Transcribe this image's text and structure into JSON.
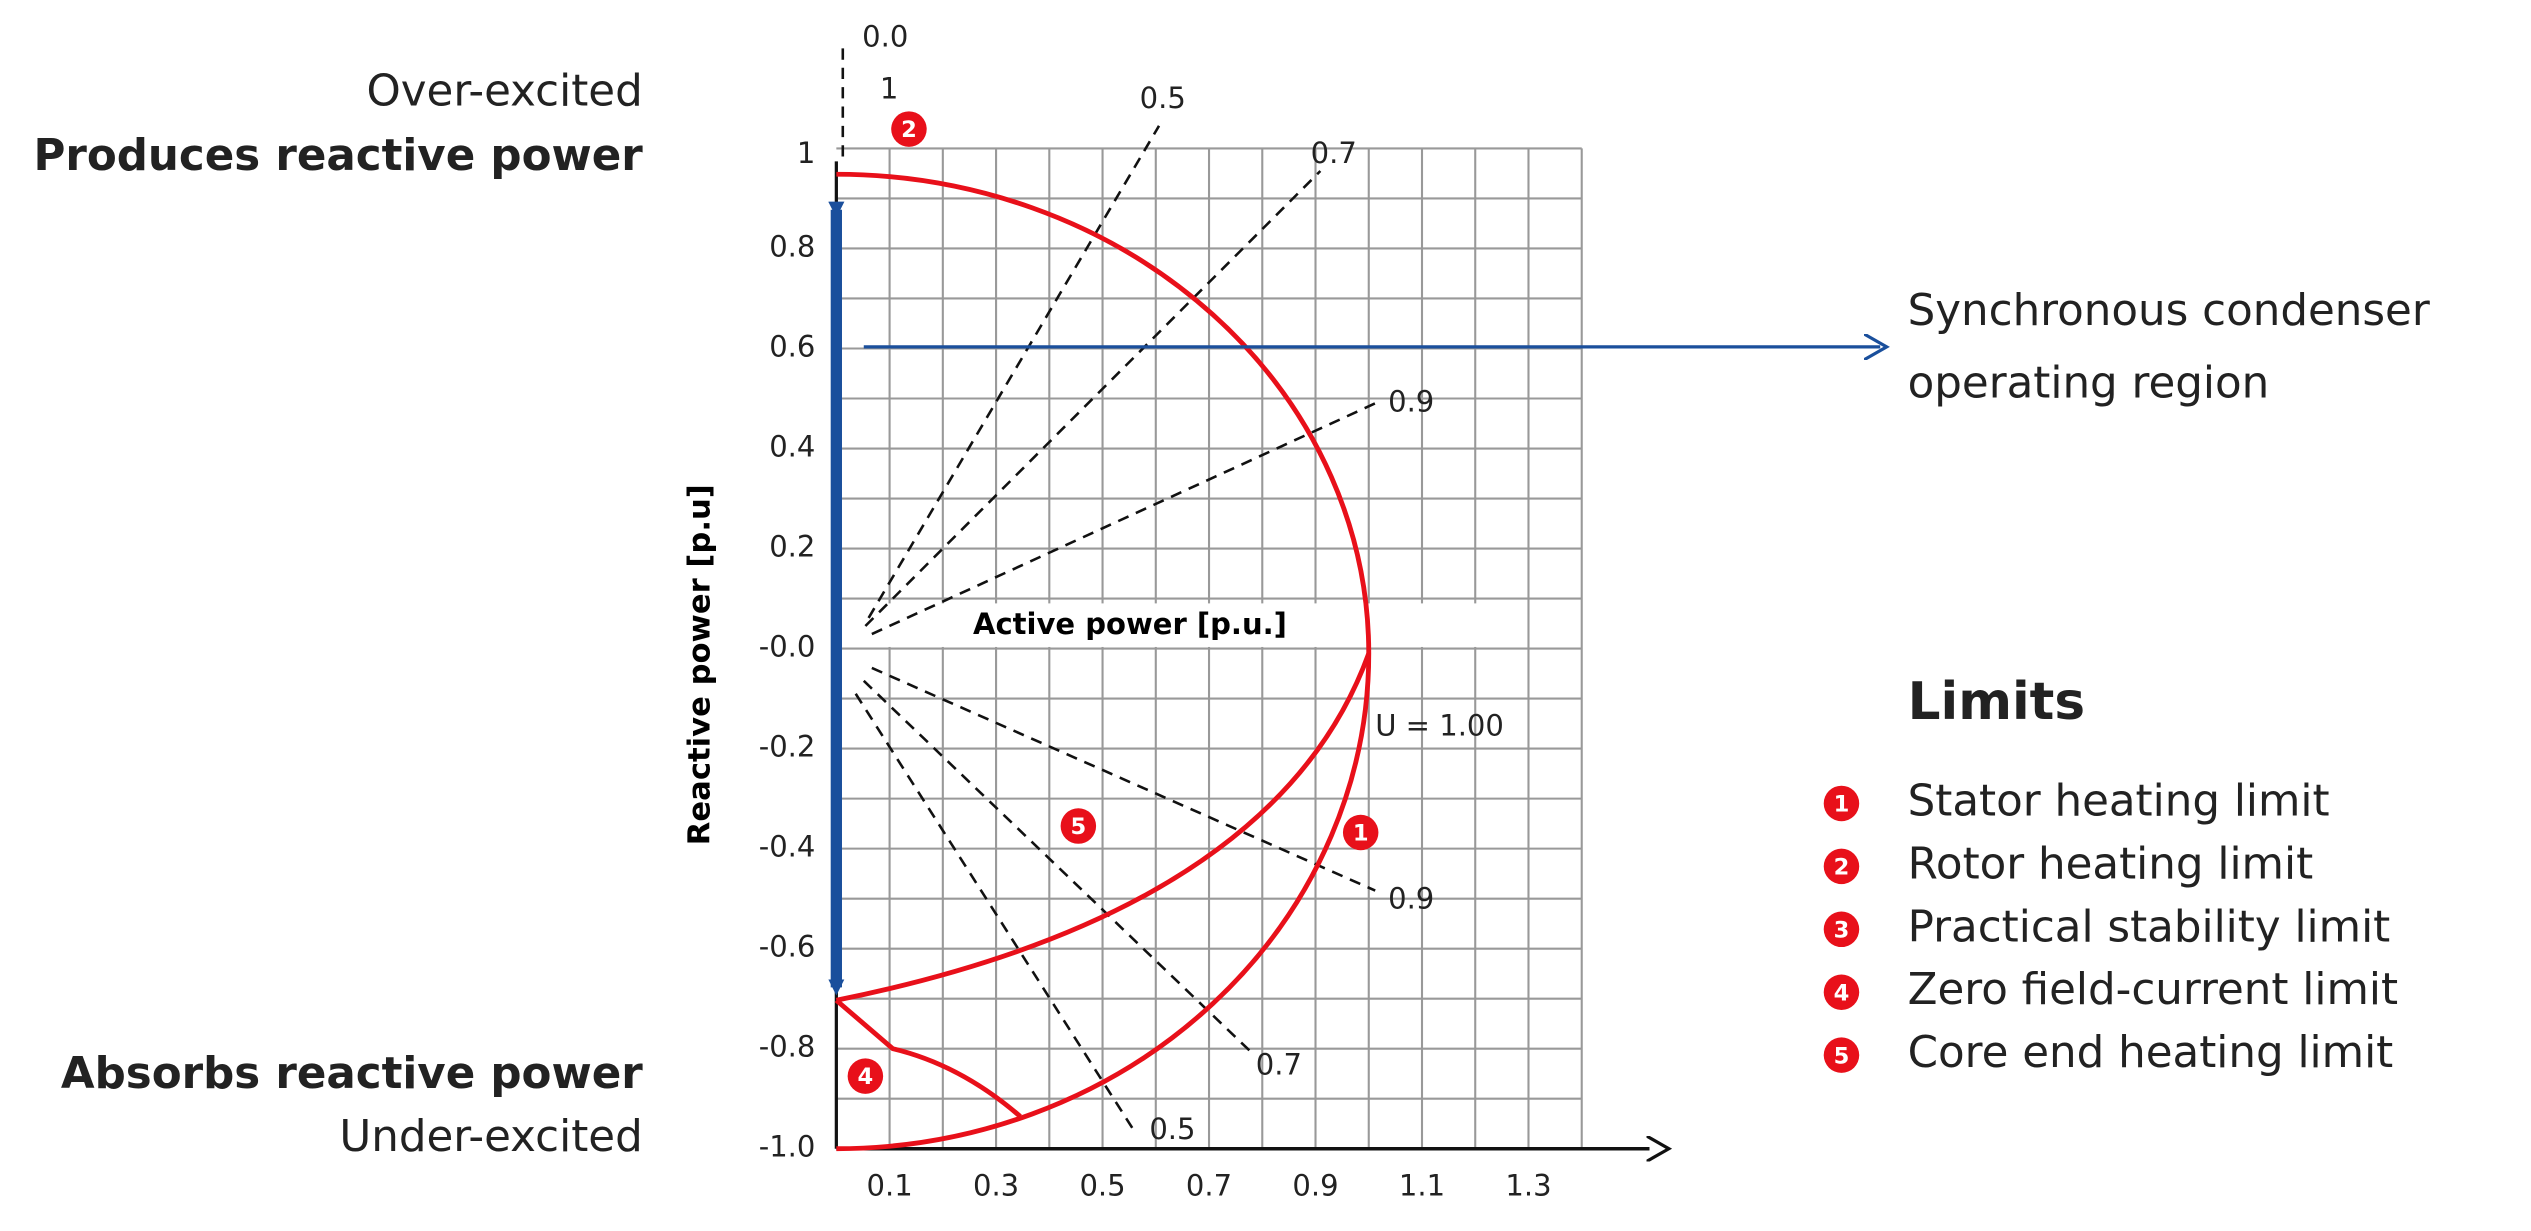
{
  "left_labels": {
    "over_excited": "Over-excited",
    "produces": "Produces reactive power",
    "absorbs": "Absorbs reactive power",
    "under_excited": "Under-excited"
  },
  "axes": {
    "y_title": "Reactive power [p.u]",
    "x_title": "Active power [p.u.]",
    "yticks": [
      "1",
      "0.8",
      "0.6",
      "0.4",
      "0.2",
      "-0.0",
      "-0.2",
      "-0.4",
      "-0.6",
      "-0.8",
      "-1.0"
    ],
    "xticks": [
      "0.1",
      "0.3",
      "0.5",
      "0.7",
      "0.9",
      "1.1",
      "1.3"
    ]
  },
  "power_factor_labels": {
    "top_0": "0.0",
    "top_1": "1",
    "upper_05": "0.5",
    "upper_07": "0.7",
    "upper_09": "0.9",
    "lower_09": "0.9",
    "lower_07": "0.7",
    "lower_05": "0.5"
  },
  "voltage_label": "U = 1.00",
  "chart_badges": [
    "2",
    "5",
    "1",
    "4"
  ],
  "region": {
    "label_line1": "Synchronous condenser",
    "label_line2": "operating region"
  },
  "limits": {
    "title": "Limits",
    "items": [
      {
        "number": "1",
        "label": "Stator heating limit"
      },
      {
        "number": "2",
        "label": "Rotor heating limit"
      },
      {
        "number": "3",
        "label": "Practical stability limit"
      },
      {
        "number": "4",
        "label": "Zero field-current limit"
      },
      {
        "number": "5",
        "label": "Core end heating limit"
      }
    ]
  }
}
